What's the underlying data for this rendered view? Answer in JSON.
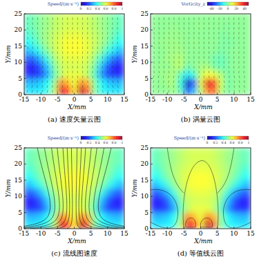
{
  "chart_data": [
    {
      "type": "heatmap",
      "title": "(a) 速度矢量云图",
      "x_label": "X/mm",
      "y_label": "Y/mm",
      "xlim": [
        -15,
        15
      ],
      "ylim": [
        0,
        25
      ],
      "xticks": [
        -15,
        -10,
        -5,
        0,
        5,
        10,
        15
      ],
      "yticks": [
        0,
        5,
        10,
        15,
        20,
        25
      ],
      "colorbar_label": "Speed/(m·s⁻¹)",
      "colorbar_range": [
        0,
        1
      ],
      "colorbar_ticks": [
        0,
        0.2,
        0.4,
        0.6,
        0.8,
        1
      ],
      "x": [
        -14,
        -12,
        -10,
        -8,
        -6,
        -4,
        -2,
        0,
        2,
        4,
        6,
        8,
        10,
        12,
        14
      ],
      "y": [
        1.25,
        3.75,
        6.25,
        8.75,
        11.25,
        13.75,
        16.25,
        18.75,
        21.25,
        23.75
      ],
      "cells": [
        [
          0.35,
          0.35,
          0.36,
          0.4,
          0.55,
          0.9,
          0.85,
          0.65,
          0.95,
          0.8,
          0.5,
          0.4,
          0.36,
          0.35,
          0.35
        ],
        [
          0.3,
          0.3,
          0.32,
          0.38,
          0.5,
          0.75,
          0.7,
          0.6,
          0.75,
          0.7,
          0.5,
          0.38,
          0.32,
          0.3,
          0.3
        ],
        [
          0.15,
          0.15,
          0.18,
          0.28,
          0.45,
          0.55,
          0.6,
          0.6,
          0.6,
          0.55,
          0.45,
          0.28,
          0.18,
          0.15,
          0.15
        ],
        [
          0.12,
          0.14,
          0.2,
          0.32,
          0.48,
          0.56,
          0.58,
          0.58,
          0.58,
          0.56,
          0.48,
          0.32,
          0.2,
          0.14,
          0.12
        ],
        [
          0.2,
          0.22,
          0.3,
          0.42,
          0.52,
          0.58,
          0.6,
          0.6,
          0.6,
          0.58,
          0.52,
          0.42,
          0.3,
          0.22,
          0.2
        ],
        [
          0.3,
          0.35,
          0.42,
          0.5,
          0.56,
          0.6,
          0.62,
          0.62,
          0.62,
          0.6,
          0.56,
          0.5,
          0.42,
          0.35,
          0.3
        ],
        [
          0.38,
          0.42,
          0.48,
          0.53,
          0.57,
          0.6,
          0.62,
          0.62,
          0.62,
          0.6,
          0.57,
          0.53,
          0.48,
          0.42,
          0.38
        ],
        [
          0.42,
          0.45,
          0.5,
          0.53,
          0.56,
          0.58,
          0.6,
          0.6,
          0.6,
          0.58,
          0.56,
          0.53,
          0.5,
          0.45,
          0.42
        ],
        [
          0.45,
          0.47,
          0.5,
          0.52,
          0.55,
          0.57,
          0.58,
          0.58,
          0.58,
          0.57,
          0.55,
          0.52,
          0.5,
          0.47,
          0.45
        ],
        [
          0.45,
          0.47,
          0.5,
          0.52,
          0.55,
          0.57,
          0.58,
          0.58,
          0.58,
          0.57,
          0.55,
          0.52,
          0.5,
          0.47,
          0.45
        ]
      ]
    },
    {
      "type": "heatmap",
      "title": "(b) 涡量云图",
      "x_label": "X/mm",
      "y_label": "Y/mm",
      "xlim": [
        -15,
        15
      ],
      "ylim": [
        0,
        25
      ],
      "xticks": [
        -15,
        -10,
        -5,
        0,
        5,
        10,
        15
      ],
      "yticks": [
        0,
        5,
        10,
        15,
        20,
        25
      ],
      "colorbar_label": "Vorticity_z",
      "colorbar_range": [
        -50,
        50
      ],
      "colorbar_ticks": [
        -40,
        -20,
        0,
        20,
        40
      ],
      "x": [
        -14,
        -12,
        -10,
        -8,
        -6,
        -4,
        -2,
        0,
        2,
        4,
        6,
        8,
        10,
        12,
        14
      ],
      "y": [
        1.25,
        3.75,
        6.25,
        8.75,
        11.25,
        13.75,
        16.25,
        18.75,
        21.25,
        23.75
      ],
      "cells": [
        [
          0,
          0,
          0,
          2,
          -5,
          -30,
          -20,
          5,
          25,
          30,
          5,
          -2,
          0,
          0,
          0
        ],
        [
          0,
          0,
          2,
          3,
          -10,
          -45,
          -30,
          10,
          40,
          35,
          8,
          -3,
          0,
          0,
          0
        ],
        [
          0,
          1,
          2,
          3,
          -5,
          -15,
          -8,
          5,
          12,
          10,
          4,
          -2,
          0,
          0,
          0
        ],
        [
          0,
          1,
          0,
          3,
          5,
          -3,
          0,
          2,
          3,
          -2,
          -4,
          -2,
          0,
          0,
          0
        ],
        [
          0,
          0,
          2,
          3,
          4,
          0,
          0,
          0,
          0,
          -3,
          -4,
          -2,
          0,
          0,
          0
        ],
        [
          0,
          0,
          1,
          2,
          2,
          0,
          0,
          0,
          0,
          0,
          -2,
          -1,
          0,
          0,
          0
        ],
        [
          0,
          1,
          1,
          2,
          1,
          0,
          1,
          0,
          0,
          0,
          -1,
          -2,
          -1,
          0,
          0
        ],
        [
          0,
          0,
          1,
          1,
          1,
          0,
          0,
          0,
          0,
          0,
          -1,
          -1,
          0,
          0,
          0
        ],
        [
          0,
          0,
          0,
          1,
          0,
          0,
          0,
          1,
          0,
          0,
          0,
          -1,
          0,
          0,
          0
        ],
        [
          0,
          0,
          0,
          0,
          0,
          0,
          0,
          0,
          0,
          0,
          0,
          0,
          0,
          0,
          0
        ]
      ]
    },
    {
      "type": "heatmap",
      "title": "(c) 流线图速度",
      "x_label": "X/mm",
      "y_label": "Y/mm",
      "xlim": [
        -15,
        15
      ],
      "ylim": [
        0,
        25
      ],
      "xticks": [
        -15,
        -10,
        -5,
        0,
        5,
        10,
        15
      ],
      "yticks": [
        0,
        5,
        10,
        15,
        20,
        25
      ],
      "colorbar_label": "Speed/(m·s⁻¹)",
      "colorbar_range": [
        0,
        1
      ],
      "colorbar_ticks": [
        0,
        0.2,
        0.4,
        0.6,
        0.8,
        1
      ],
      "x": [
        -14,
        -12,
        -10,
        -8,
        -6,
        -4,
        -2,
        0,
        2,
        4,
        6,
        8,
        10,
        12,
        14
      ],
      "y": [
        1.25,
        3.75,
        6.25,
        8.75,
        11.25,
        13.75,
        16.25,
        18.75,
        21.25,
        23.75
      ],
      "cells": [
        [
          0.35,
          0.35,
          0.36,
          0.4,
          0.55,
          0.9,
          0.85,
          0.65,
          0.95,
          0.8,
          0.5,
          0.4,
          0.36,
          0.35,
          0.35
        ],
        [
          0.3,
          0.3,
          0.32,
          0.38,
          0.5,
          0.75,
          0.7,
          0.6,
          0.75,
          0.7,
          0.5,
          0.38,
          0.32,
          0.3,
          0.3
        ],
        [
          0.15,
          0.15,
          0.18,
          0.28,
          0.45,
          0.55,
          0.6,
          0.6,
          0.6,
          0.55,
          0.45,
          0.28,
          0.18,
          0.15,
          0.15
        ],
        [
          0.12,
          0.14,
          0.2,
          0.32,
          0.48,
          0.56,
          0.58,
          0.58,
          0.58,
          0.56,
          0.48,
          0.32,
          0.2,
          0.14,
          0.12
        ],
        [
          0.2,
          0.22,
          0.3,
          0.42,
          0.52,
          0.58,
          0.6,
          0.6,
          0.6,
          0.58,
          0.52,
          0.42,
          0.3,
          0.22,
          0.2
        ],
        [
          0.3,
          0.35,
          0.42,
          0.5,
          0.56,
          0.6,
          0.62,
          0.62,
          0.62,
          0.6,
          0.56,
          0.5,
          0.42,
          0.35,
          0.3
        ],
        [
          0.38,
          0.42,
          0.48,
          0.53,
          0.57,
          0.6,
          0.62,
          0.62,
          0.62,
          0.6,
          0.57,
          0.53,
          0.48,
          0.42,
          0.38
        ],
        [
          0.42,
          0.45,
          0.5,
          0.53,
          0.56,
          0.58,
          0.6,
          0.6,
          0.6,
          0.58,
          0.56,
          0.53,
          0.5,
          0.45,
          0.42
        ],
        [
          0.45,
          0.47,
          0.5,
          0.52,
          0.55,
          0.57,
          0.58,
          0.58,
          0.58,
          0.57,
          0.55,
          0.52,
          0.5,
          0.47,
          0.45
        ],
        [
          0.45,
          0.47,
          0.5,
          0.52,
          0.55,
          0.57,
          0.58,
          0.58,
          0.58,
          0.57,
          0.55,
          0.52,
          0.5,
          0.47,
          0.45
        ]
      ]
    },
    {
      "type": "heatmap",
      "title": "(d) 等值线云图",
      "x_label": "X/mm",
      "y_label": "Y/mm",
      "xlim": [
        -15,
        15
      ],
      "ylim": [
        0,
        25
      ],
      "xticks": [
        -15,
        -10,
        -5,
        0,
        5,
        10,
        15
      ],
      "yticks": [
        0,
        5,
        10,
        15,
        20,
        25
      ],
      "colorbar_label": "Speed/(m·s⁻¹)",
      "colorbar_range": [
        0,
        1
      ],
      "colorbar_ticks": [
        0,
        0.2,
        0.4,
        0.6,
        0.8,
        1
      ],
      "x": [
        -14,
        -12,
        -10,
        -8,
        -6,
        -4,
        -2,
        0,
        2,
        4,
        6,
        8,
        10,
        12,
        14
      ],
      "y": [
        1.25,
        3.75,
        6.25,
        8.75,
        11.25,
        13.75,
        16.25,
        18.75,
        21.25,
        23.75
      ],
      "cells": [
        [
          0.35,
          0.35,
          0.36,
          0.4,
          0.55,
          0.9,
          0.85,
          0.65,
          0.95,
          0.8,
          0.5,
          0.4,
          0.36,
          0.35,
          0.35
        ],
        [
          0.3,
          0.3,
          0.32,
          0.38,
          0.5,
          0.75,
          0.7,
          0.6,
          0.75,
          0.7,
          0.5,
          0.38,
          0.32,
          0.3,
          0.3
        ],
        [
          0.15,
          0.15,
          0.18,
          0.28,
          0.45,
          0.55,
          0.6,
          0.6,
          0.6,
          0.55,
          0.45,
          0.28,
          0.18,
          0.15,
          0.15
        ],
        [
          0.12,
          0.14,
          0.2,
          0.32,
          0.48,
          0.56,
          0.58,
          0.58,
          0.58,
          0.56,
          0.48,
          0.32,
          0.2,
          0.14,
          0.12
        ],
        [
          0.2,
          0.22,
          0.3,
          0.42,
          0.52,
          0.58,
          0.6,
          0.6,
          0.6,
          0.58,
          0.52,
          0.42,
          0.3,
          0.22,
          0.2
        ],
        [
          0.3,
          0.35,
          0.42,
          0.5,
          0.56,
          0.6,
          0.62,
          0.62,
          0.62,
          0.6,
          0.56,
          0.5,
          0.42,
          0.35,
          0.3
        ],
        [
          0.38,
          0.42,
          0.48,
          0.53,
          0.57,
          0.6,
          0.62,
          0.62,
          0.62,
          0.6,
          0.57,
          0.53,
          0.48,
          0.42,
          0.38
        ],
        [
          0.42,
          0.45,
          0.5,
          0.53,
          0.56,
          0.58,
          0.6,
          0.6,
          0.6,
          0.58,
          0.56,
          0.53,
          0.5,
          0.45,
          0.42
        ],
        [
          0.45,
          0.47,
          0.5,
          0.52,
          0.55,
          0.57,
          0.58,
          0.58,
          0.58,
          0.57,
          0.55,
          0.52,
          0.5,
          0.47,
          0.45
        ],
        [
          0.45,
          0.47,
          0.5,
          0.52,
          0.55,
          0.57,
          0.58,
          0.58,
          0.58,
          0.57,
          0.55,
          0.52,
          0.5,
          0.47,
          0.45
        ]
      ]
    }
  ]
}
